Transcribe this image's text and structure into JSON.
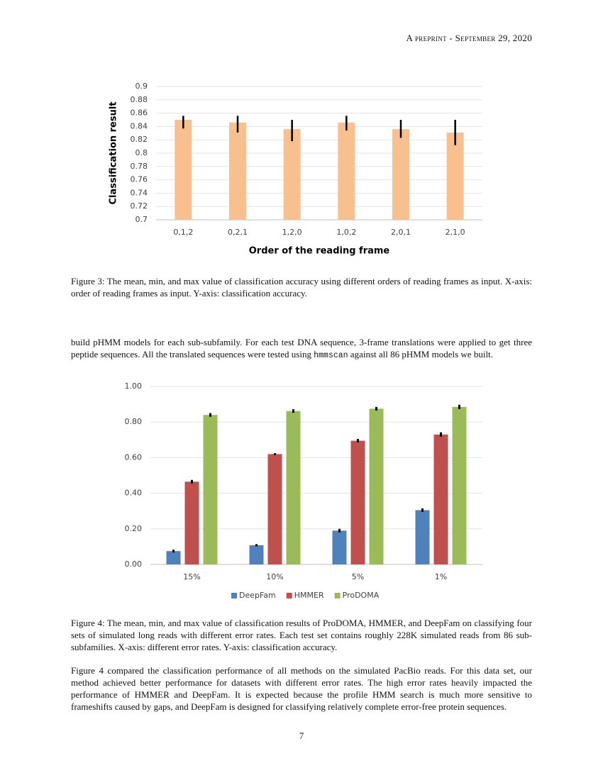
{
  "header": "A preprint - September 29, 2020",
  "chart_data": [
    {
      "type": "bar",
      "x_label": "Order of the reading frame",
      "y_label": "Classification result",
      "categories": [
        "0,1,2",
        "0,2,1",
        "1,2,0",
        "1,0,2",
        "2,0,1",
        "2,1,0"
      ],
      "values": [
        0.85,
        0.846,
        0.836,
        0.846,
        0.836,
        0.831
      ],
      "min": [
        0.837,
        0.831,
        0.818,
        0.834,
        0.823,
        0.812
      ],
      "max": [
        0.856,
        0.856,
        0.85,
        0.856,
        0.85,
        0.85
      ],
      "color": "#f9c08f",
      "error_color": "#000000",
      "ylim": [
        0.7,
        0.9
      ],
      "yticks": [
        0.7,
        0.72,
        0.74,
        0.76,
        0.78,
        0.8,
        0.82,
        0.84,
        0.86,
        0.88,
        0.9
      ],
      "grid": true
    },
    {
      "type": "bar",
      "categories": [
        "15%",
        "10%",
        "5%",
        "1%"
      ],
      "series": [
        {
          "name": "DeepFam",
          "color": "#4f81bd",
          "values": [
            0.075,
            0.108,
            0.19,
            0.305
          ],
          "errors": [
            0.008,
            0.006,
            0.01,
            0.01
          ]
        },
        {
          "name": "HMMER",
          "color": "#c0504d",
          "values": [
            0.465,
            0.62,
            0.695,
            0.73
          ],
          "errors": [
            0.01,
            0.005,
            0.01,
            0.012
          ]
        },
        {
          "name": "ProDOMA",
          "color": "#9bbb59",
          "values": [
            0.84,
            0.862,
            0.875,
            0.885
          ],
          "errors": [
            0.01,
            0.01,
            0.01,
            0.012
          ]
        }
      ],
      "error_color": "#000000",
      "ylim": [
        0,
        1
      ],
      "yticks": [
        {
          "value": 0,
          "label": "0.00"
        },
        {
          "value": 0.2,
          "label": "0.20"
        },
        {
          "value": 0.4,
          "label": "0.40"
        },
        {
          "value": 0.6,
          "label": "0.60"
        },
        {
          "value": 0.8,
          "label": "0.80"
        },
        {
          "value": 1,
          "label": "1.00"
        }
      ],
      "grid": true,
      "legend": "bottom"
    }
  ],
  "captions": [
    "Figure 3: The mean, min, and max value of classification accuracy using different orders of reading frames as input. X-axis: order of reading frames as input. Y-axis: classification accuracy.",
    "Figure 4: The mean, min, and max value of classification results of ProDOMA, HMMER, and DeepFam on classifying four sets of simulated long reads with different error rates. Each test set contains roughly 228K simulated reads from 86 sub-subfamilies. X-axis: different error rates. Y-axis: classification accuracy."
  ],
  "paragraphs": [
    {
      "before": "build pHMM models for each sub-subfamily. For each test DNA sequence, 3-frame translations were applied to get three peptide sequences. All the translated sequences were tested using ",
      "code": "hmmscan",
      "after": " against all 86 pHMM models we built."
    },
    "Figure 4 compared the classification performance of all methods on the simulated PacBio reads. For this data set, our method achieved better performance for datasets with different error rates. The high error rates heavily impacted the performance of HMMER and DeepFam. It is expected because the profile HMM search is much more sensitive to frameshifts caused by gaps, and DeepFam is designed for classifying relatively complete error-free protein sequences."
  ],
  "page_number": "7"
}
